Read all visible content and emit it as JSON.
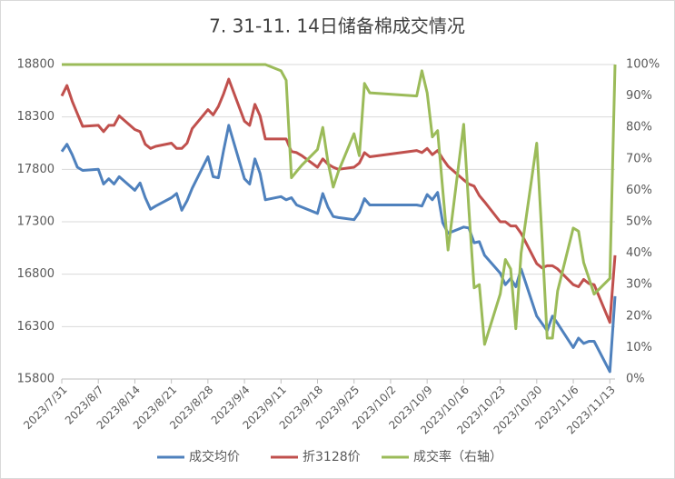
{
  "chart_data": {
    "type": "line",
    "title": "7. 31-11. 14日储备棉成交情况",
    "x": [
      "2023/7/31",
      "2023/8/1",
      "2023/8/2",
      "2023/8/3",
      "2023/8/4",
      "2023/8/7",
      "2023/8/8",
      "2023/8/9",
      "2023/8/10",
      "2023/8/11",
      "2023/8/14",
      "2023/8/15",
      "2023/8/16",
      "2023/8/17",
      "2023/8/18",
      "2023/8/21",
      "2023/8/22",
      "2023/8/23",
      "2023/8/24",
      "2023/8/25",
      "2023/8/28",
      "2023/8/29",
      "2023/8/30",
      "2023/8/31",
      "2023/9/1",
      "2023/9/4",
      "2023/9/5",
      "2023/9/6",
      "2023/9/7",
      "2023/9/8",
      "2023/9/11",
      "2023/9/12",
      "2023/9/13",
      "2023/9/14",
      "2023/9/15",
      "2023/9/18",
      "2023/9/19",
      "2023/9/20",
      "2023/9/21",
      "2023/9/22",
      "2023/9/25",
      "2023/9/26",
      "2023/9/27",
      "2023/9/28",
      "2023/10/7",
      "2023/10/8",
      "2023/10/9",
      "2023/10/10",
      "2023/10/11",
      "2023/10/12",
      "2023/10/13",
      "2023/10/16",
      "2023/10/17",
      "2023/10/18",
      "2023/10/19",
      "2023/10/20",
      "2023/10/23",
      "2023/10/24",
      "2023/10/25",
      "2023/10/26",
      "2023/10/27",
      "2023/10/30",
      "2023/10/31",
      "2023/11/1",
      "2023/11/2",
      "2023/11/3",
      "2023/11/6",
      "2023/11/7",
      "2023/11/8",
      "2023/11/9",
      "2023/11/10",
      "2023/11/13",
      "2023/11/14"
    ],
    "series": [
      {
        "name": "成交均价",
        "color": "#4f81bd",
        "axis": "y",
        "values": [
          17970,
          18040,
          17940,
          17820,
          17790,
          17800,
          17660,
          17710,
          17660,
          17730,
          17600,
          17670,
          17530,
          17420,
          17450,
          17530,
          17570,
          17410,
          17500,
          17620,
          17920,
          17730,
          17720,
          17980,
          18220,
          17710,
          17660,
          17900,
          17760,
          17510,
          17540,
          17510,
          17530,
          17460,
          17440,
          17380,
          17570,
          17440,
          17350,
          17340,
          17320,
          17390,
          17520,
          17460,
          17460,
          17450,
          17560,
          17510,
          17580,
          17290,
          17190,
          17250,
          17240,
          17100,
          17110,
          16980,
          16810,
          16700,
          16760,
          16680,
          16850,
          16400,
          16330,
          16260,
          16400,
          16330,
          16100,
          16190,
          16140,
          16160,
          16160,
          15870,
          16590
        ]
      },
      {
        "name": "折3128价",
        "color": "#c0504d",
        "axis": "y",
        "values": [
          18500,
          18600,
          18450,
          18330,
          18210,
          18220,
          18160,
          18220,
          18220,
          18310,
          18180,
          18160,
          18040,
          18000,
          18020,
          18050,
          18000,
          18000,
          18050,
          18190,
          18370,
          18320,
          18400,
          18520,
          18660,
          18260,
          18220,
          18420,
          18310,
          18090,
          18090,
          18090,
          17970,
          17960,
          17930,
          17820,
          17900,
          17850,
          17820,
          17800,
          17820,
          17860,
          17960,
          17920,
          17980,
          17960,
          18000,
          17940,
          17980,
          17900,
          17830,
          17700,
          17660,
          17640,
          17550,
          17490,
          17300,
          17300,
          17260,
          17260,
          17190,
          16900,
          16860,
          16880,
          16880,
          16850,
          16700,
          16680,
          16750,
          16710,
          16700,
          16340,
          16980
        ]
      },
      {
        "name": "成交率（右轴）",
        "color": "#9bbb59",
        "axis": "y2",
        "values": [
          100,
          100,
          100,
          100,
          100,
          100,
          100,
          100,
          100,
          100,
          100,
          100,
          100,
          100,
          100,
          100,
          100,
          100,
          100,
          100,
          100,
          100,
          100,
          100,
          100,
          100,
          100,
          100,
          100,
          100,
          98,
          95,
          64,
          66,
          68,
          73,
          80,
          69,
          61,
          66,
          78,
          71,
          94,
          91,
          90,
          98,
          91,
          77,
          79,
          60,
          41,
          81,
          54,
          29,
          30,
          11,
          27,
          38,
          35,
          16,
          40,
          75,
          45,
          13,
          13,
          28,
          48,
          47,
          37,
          32,
          27,
          32,
          100
        ]
      }
    ],
    "xlim": [
      "2023/7/31",
      "2023/11/14"
    ],
    "xticks": [
      "2023/7/31",
      "2023/8/7",
      "2023/8/14",
      "2023/8/21",
      "2023/8/28",
      "2023/9/4",
      "2023/9/11",
      "2023/9/18",
      "2023/9/25",
      "2023/10/2",
      "2023/10/9",
      "2023/10/16",
      "2023/10/23",
      "2023/10/30",
      "2023/11/6",
      "2023/11/13"
    ],
    "ylim": [
      15800,
      18800
    ],
    "yticks": [
      15800,
      16300,
      16800,
      17300,
      17800,
      18300,
      18800
    ],
    "y2lim": [
      0,
      100
    ],
    "y2ticks": [
      {
        "value": 0,
        "label": "0%"
      },
      {
        "value": 10,
        "label": "10%"
      },
      {
        "value": 20,
        "label": "20%"
      },
      {
        "value": 30,
        "label": "30%"
      },
      {
        "value": 40,
        "label": "40%"
      },
      {
        "value": 50,
        "label": "50%"
      },
      {
        "value": 60,
        "label": "60%"
      },
      {
        "value": 70,
        "label": "70%"
      },
      {
        "value": 80,
        "label": "80%"
      },
      {
        "value": 90,
        "label": "90%"
      },
      {
        "value": 100,
        "label": "100%"
      }
    ],
    "grid": true,
    "legend": "bottom"
  }
}
